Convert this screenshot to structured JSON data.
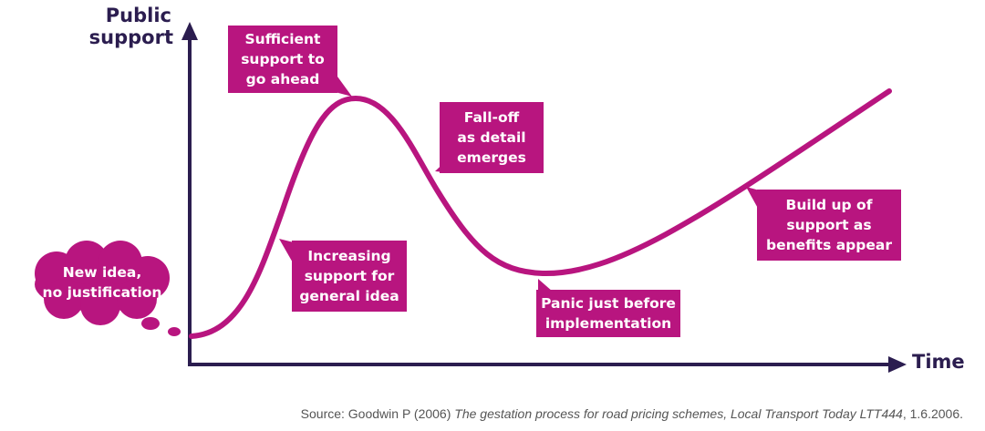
{
  "axes": {
    "y_label": [
      "Public",
      "support"
    ],
    "x_label": "Time"
  },
  "callouts": [
    {
      "lines": [
        "New idea,",
        "no justification"
      ]
    },
    {
      "lines": [
        "Increasing",
        "support for",
        "general idea"
      ]
    },
    {
      "lines": [
        "Sufficient",
        "support to",
        "go ahead"
      ]
    },
    {
      "lines": [
        "Fall-off",
        "as detail",
        "emerges"
      ]
    },
    {
      "lines": [
        "Panic just before",
        "implementation"
      ]
    },
    {
      "lines": [
        "Build up of",
        "support as",
        "benefits appear"
      ]
    }
  ],
  "source": {
    "prefix": "Source: Goodwin P (2006) ",
    "title": "The gestation process for road pricing schemes, Local Transport Today LTT444",
    "suffix": ", 1.6.2006."
  }
}
